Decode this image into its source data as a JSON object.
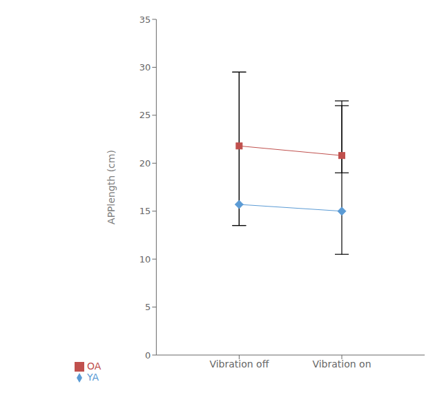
{
  "chart_data": {
    "type": "line",
    "categories": [
      "Vibration off",
      "Vibration on"
    ],
    "series": [
      {
        "name": "YA",
        "color": "#5B9BD5",
        "marker": "diamond",
        "line_style": "solid",
        "values": [
          15.7,
          15.0
        ],
        "yerr_upper": [
          13.8,
          11.5
        ],
        "yerr_lower": [
          2.2,
          4.5
        ]
      },
      {
        "name": "OA",
        "color": "#C0504D",
        "marker": "square",
        "line_style": "solid",
        "values": [
          21.8,
          20.8
        ],
        "yerr_upper": [
          7.7,
          5.2
        ],
        "yerr_lower": [
          8.3,
          1.8
        ]
      }
    ],
    "ylabel": "APPlength (cm)",
    "ylim": [
      0,
      35
    ],
    "yticks": [
      0,
      5,
      10,
      15,
      20,
      25,
      30,
      35
    ],
    "grid": false,
    "legend": "bottom"
  }
}
